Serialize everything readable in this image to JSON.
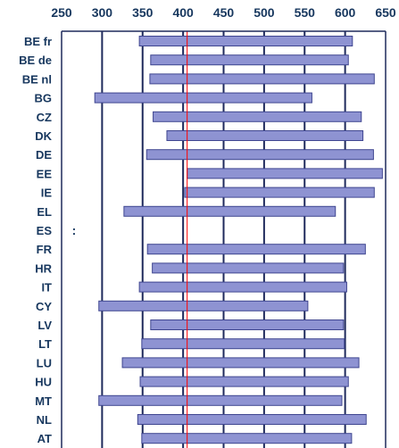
{
  "chart_data": {
    "type": "bar",
    "orientation": "horizontal",
    "subtype": "floating-range",
    "xlim": [
      250,
      650
    ],
    "x_ticks": [
      250,
      300,
      350,
      400,
      450,
      500,
      550,
      600,
      650
    ],
    "x_tick_position": "top",
    "grid": true,
    "reference_line": {
      "value": 405,
      "color": "#ff0000"
    },
    "bar_color": "#8e93d2",
    "bar_border_color": "#3f4690",
    "categories": [
      "BE fr",
      "BE de",
      "BE nl",
      "BG",
      "CZ",
      "DK",
      "DE",
      "EE",
      "IE",
      "EL",
      "ES",
      "FR",
      "HR",
      "IT",
      "CY",
      "LV",
      "LT",
      "LU",
      "HU",
      "MT",
      "NL",
      "AT"
    ],
    "ranges": [
      [
        346,
        609
      ],
      [
        360,
        604
      ],
      [
        359,
        636
      ],
      [
        291,
        559
      ],
      [
        363,
        620
      ],
      [
        380,
        622
      ],
      [
        355,
        635
      ],
      [
        405,
        646
      ],
      [
        402,
        636
      ],
      [
        327,
        588
      ],
      null,
      [
        356,
        625
      ],
      [
        362,
        598
      ],
      [
        346,
        602
      ],
      [
        296,
        554
      ],
      [
        360,
        598
      ],
      [
        349,
        599
      ],
      [
        325,
        617
      ],
      [
        347,
        604
      ],
      [
        296,
        596
      ],
      [
        344,
        626
      ],
      [
        349,
        608
      ]
    ],
    "missing_marker": ":"
  }
}
